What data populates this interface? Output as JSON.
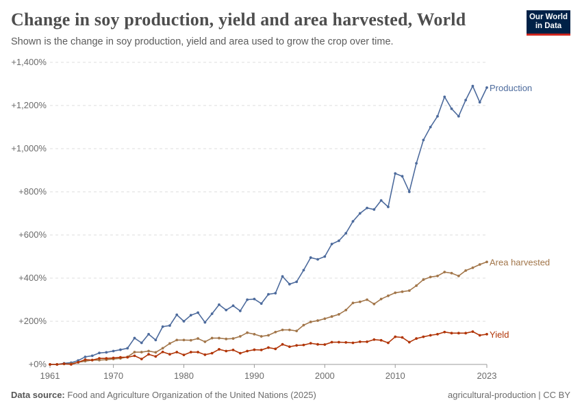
{
  "header": {
    "title": "Change in soy production, yield and area harvested, World",
    "subtitle": "Shown is the change in soy production, yield and area used to grow the crop over time.",
    "logo": "Our World in Data"
  },
  "footer": {
    "source_label": "Data source:",
    "source": "Food and Agriculture Organization of the United Nations (2025)",
    "license": "agricultural-production | CC BY"
  },
  "chart_data": {
    "type": "line",
    "title": "Change in soy production, yield and area harvested, World",
    "xlabel": "",
    "ylabel": "",
    "xlim": [
      1961,
      2023
    ],
    "ylim": [
      0,
      1400
    ],
    "y_ticks": [
      "+0%",
      "+200%",
      "+400%",
      "+600%",
      "+800%",
      "+1,000%",
      "+1,200%",
      "+1,400%"
    ],
    "y_tick_values": [
      0,
      200,
      400,
      600,
      800,
      1000,
      1200,
      1400
    ],
    "x_ticks": [
      "1961",
      "1970",
      "1980",
      "1990",
      "2000",
      "2010",
      "2023"
    ],
    "grid": "horizontal dashed",
    "legend": "inline labels at line ends (right)",
    "x": [
      1961,
      1962,
      1963,
      1964,
      1965,
      1966,
      1967,
      1968,
      1969,
      1970,
      1971,
      1972,
      1973,
      1974,
      1975,
      1976,
      1977,
      1978,
      1979,
      1980,
      1981,
      1982,
      1983,
      1984,
      1985,
      1986,
      1987,
      1988,
      1989,
      1990,
      1991,
      1992,
      1993,
      1994,
      1995,
      1996,
      1997,
      1998,
      1999,
      2000,
      2001,
      2002,
      2003,
      2004,
      2005,
      2006,
      2007,
      2008,
      2009,
      2010,
      2011,
      2012,
      2013,
      2014,
      2015,
      2016,
      2017,
      2018,
      2019,
      2020,
      2021,
      2022,
      2023
    ],
    "series": [
      {
        "name": "Production",
        "color": "#4c6a9c",
        "values": [
          0,
          0,
          5,
          8,
          18,
          35,
          40,
          53,
          56,
          62,
          68,
          75,
          122,
          100,
          140,
          113,
          175,
          180,
          230,
          200,
          228,
          240,
          195,
          235,
          277,
          252,
          272,
          248,
          300,
          303,
          282,
          325,
          330,
          408,
          372,
          383,
          437,
          495,
          487,
          500,
          558,
          573,
          608,
          663,
          700,
          725,
          718,
          760,
          730,
          885,
          872,
          800,
          932,
          1040,
          1100,
          1150,
          1240,
          1185,
          1150,
          1225,
          1290,
          1215,
          1283
        ]
      },
      {
        "name": "Area harvested",
        "color": "#a2764a",
        "values": [
          0,
          0,
          2,
          3,
          10,
          15,
          20,
          20,
          22,
          25,
          28,
          35,
          57,
          57,
          62,
          56,
          75,
          97,
          113,
          113,
          112,
          120,
          105,
          122,
          122,
          118,
          120,
          130,
          147,
          140,
          130,
          135,
          150,
          160,
          160,
          155,
          182,
          197,
          203,
          212,
          222,
          232,
          252,
          285,
          290,
          300,
          280,
          303,
          318,
          332,
          337,
          342,
          365,
          393,
          405,
          410,
          428,
          423,
          410,
          435,
          448,
          463,
          475
        ]
      },
      {
        "name": "Yield",
        "color": "#b13507",
        "values": [
          0,
          0,
          3,
          0,
          10,
          22,
          20,
          28,
          28,
          30,
          33,
          33,
          40,
          25,
          47,
          37,
          58,
          47,
          57,
          44,
          57,
          57,
          45,
          52,
          70,
          62,
          67,
          52,
          62,
          68,
          67,
          78,
          72,
          93,
          82,
          88,
          90,
          98,
          93,
          92,
          103,
          103,
          102,
          100,
          105,
          105,
          115,
          112,
          100,
          128,
          125,
          103,
          120,
          128,
          135,
          140,
          150,
          145,
          145,
          145,
          152,
          135,
          140
        ]
      }
    ]
  }
}
